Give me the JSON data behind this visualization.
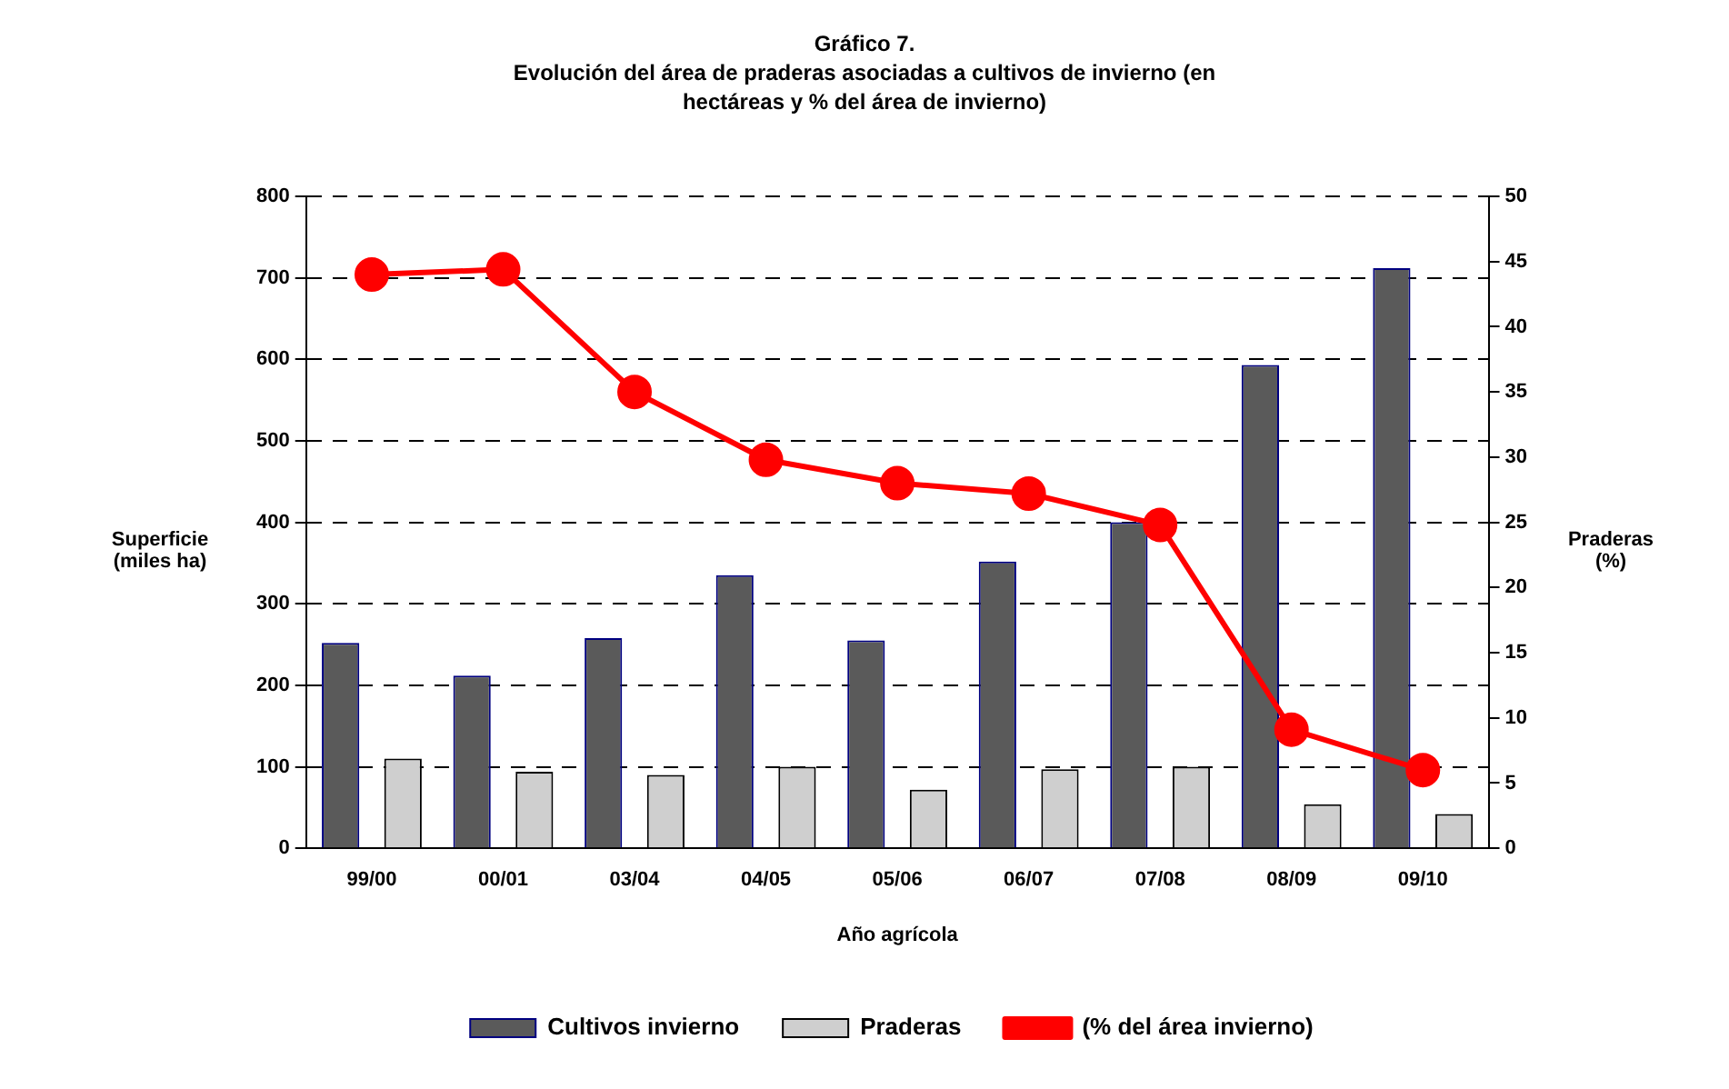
{
  "chart_data": {
    "type": "bar",
    "title": "Gráfico 7.",
    "subtitle": "Evolución del área de praderas asociadas a cultivos de invierno (en hectáreas y % del área de invierno)",
    "xlabel": "Año agrícola",
    "ylabel": "Superficie (miles ha)",
    "y2label": "Praderas (%)",
    "categories": [
      "99/00",
      "00/01",
      "03/04",
      "04/05",
      "05/06",
      "06/07",
      "07/08",
      "08/09",
      "09/10"
    ],
    "series": [
      {
        "name": "Cultivos invierno",
        "color": "#5a5a5a",
        "values": [
          252,
          212,
          258,
          335,
          255,
          352,
          400,
          593,
          712
        ]
      },
      {
        "name": "Praderas",
        "color": "#cfcfcf",
        "values": [
          110,
          94,
          90,
          100,
          72,
          97,
          100,
          54,
          42
        ]
      },
      {
        "name": "(% del área invierno)",
        "type": "line",
        "axis": "y2",
        "color": "#ff0000",
        "values": [
          44,
          44.4,
          35,
          29.8,
          28,
          27.2,
          24.8,
          9.1,
          6
        ]
      }
    ],
    "ylim": [
      0,
      800
    ],
    "yticks": [
      0,
      100,
      200,
      300,
      400,
      500,
      600,
      700,
      800
    ],
    "y2lim": [
      0,
      50
    ],
    "y2ticks": [
      0,
      5,
      10,
      15,
      20,
      25,
      30,
      35,
      40,
      45,
      50
    ],
    "grid": "y",
    "legend": "bottom",
    "marker": "circle",
    "line_style": "solid"
  }
}
